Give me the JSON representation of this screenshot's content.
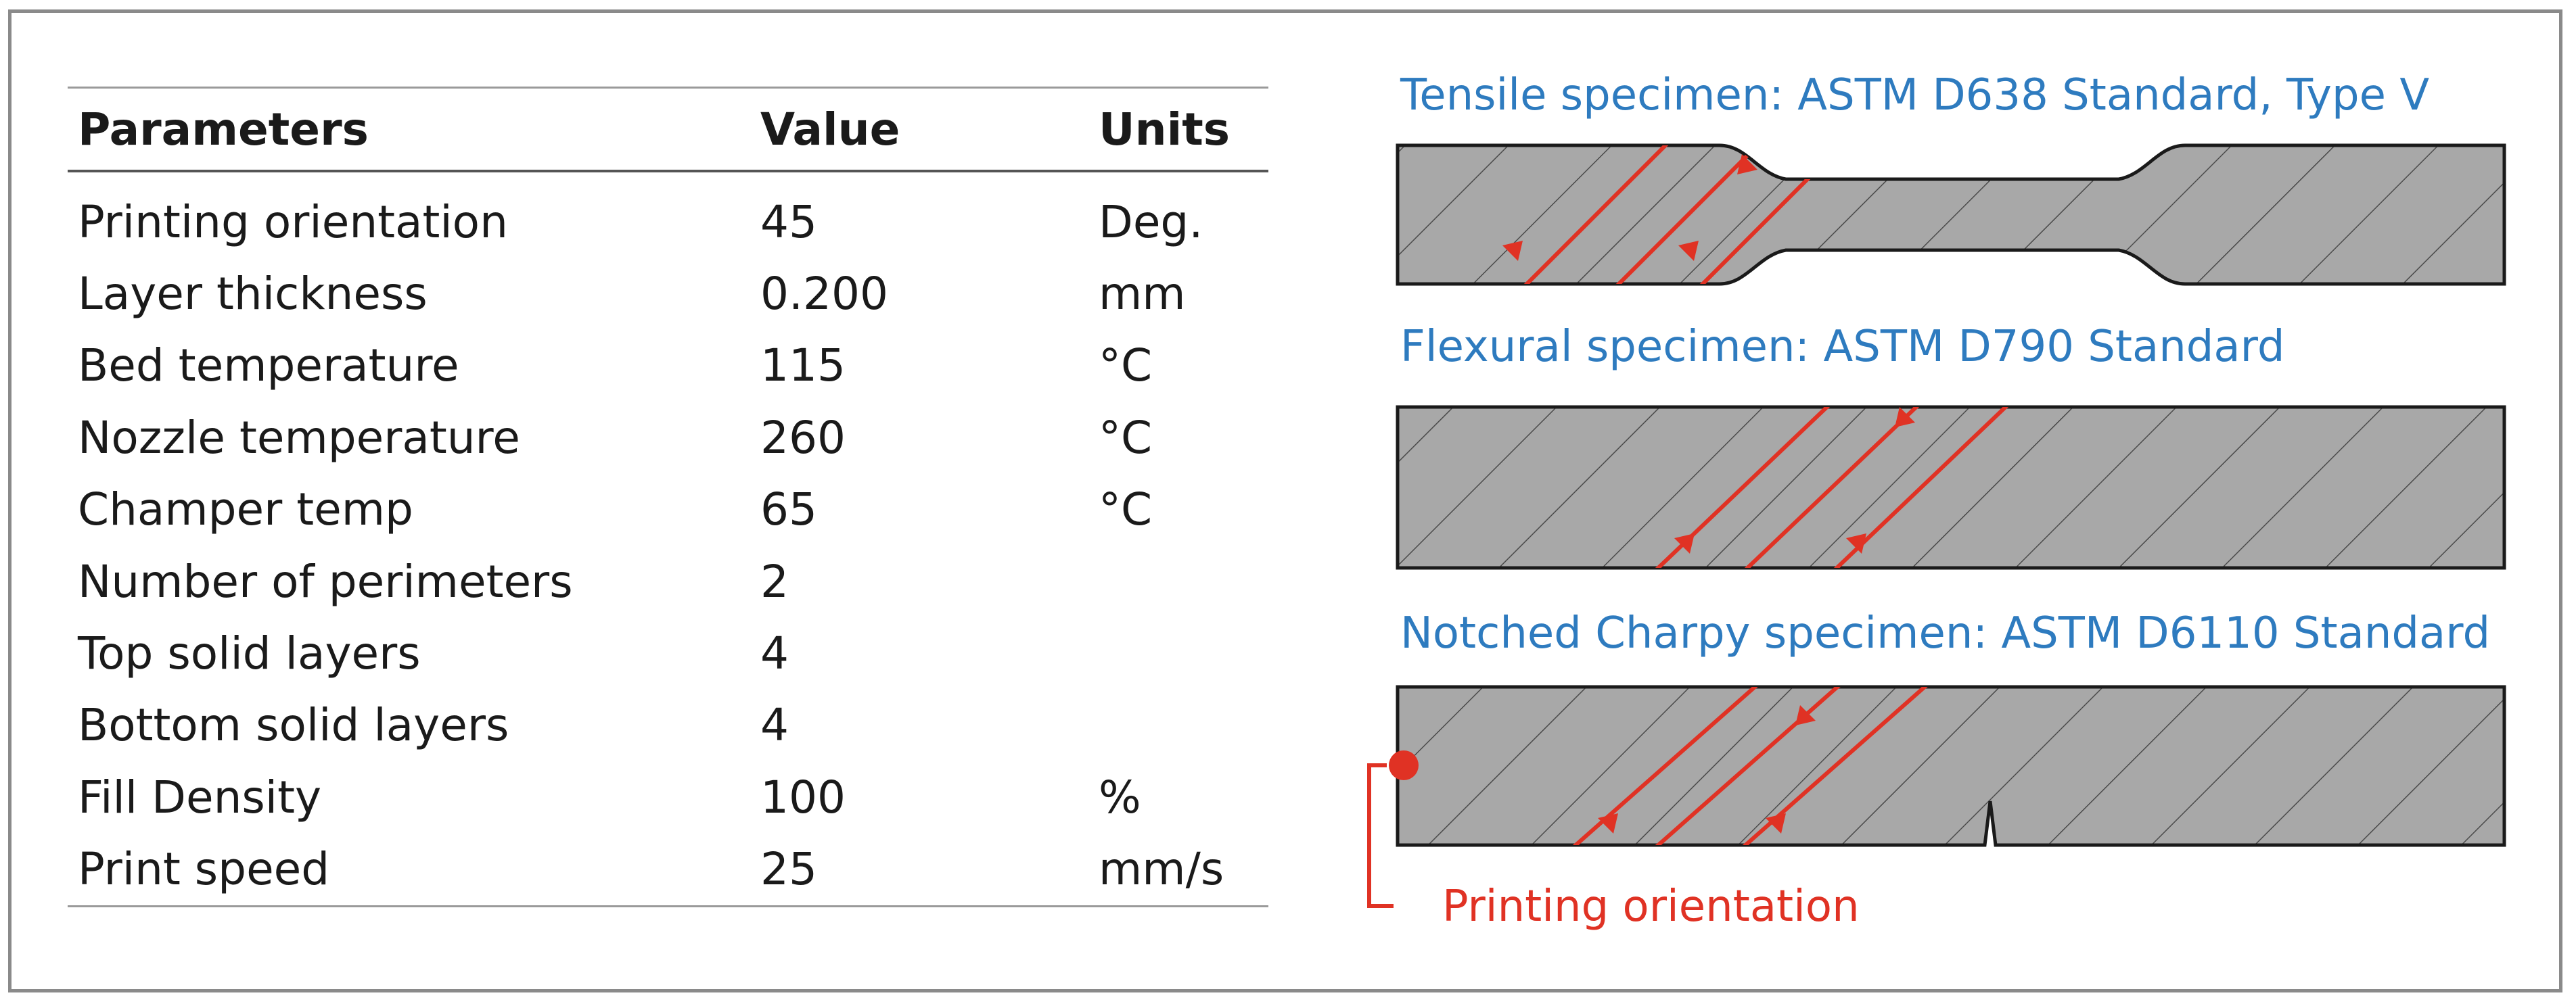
{
  "table": {
    "headers": {
      "parameter": "Parameters",
      "value": "Value",
      "units": "Units"
    },
    "rows": [
      {
        "parameter": "Printing orientation",
        "value": "45",
        "units": "Deg."
      },
      {
        "parameter": "Layer thickness",
        "value": "0.200",
        "units": "mm"
      },
      {
        "parameter": "Bed temperature",
        "value": "115",
        "units": "°C"
      },
      {
        "parameter": "Nozzle temperature",
        "value": "260",
        "units": "°C"
      },
      {
        "parameter": "Champer temp",
        "value": "65",
        "units": "°C"
      },
      {
        "parameter": "Number of perimeters",
        "value": "2",
        "units": ""
      },
      {
        "parameter": "Top solid layers",
        "value": "4",
        "units": ""
      },
      {
        "parameter": "Bottom solid layers",
        "value": "4",
        "units": ""
      },
      {
        "parameter": "Fill Density",
        "value": "100",
        "units": "%"
      },
      {
        "parameter": "Print speed",
        "value": "25",
        "units": "mm/s"
      }
    ]
  },
  "specimens": {
    "tensile_title": "Tensile specimen: ASTM D638 Standard, Type V",
    "flexural_title": "Flexural specimen: ASTM D790 Standard",
    "charpy_title": "Notched Charpy specimen: ASTM D6110 Standard"
  },
  "legend": {
    "label": "Printing orientation"
  },
  "colors": {
    "title_blue": "#2e7bbf",
    "orientation_red": "#e03224",
    "specimen_fill": "#a8a8a8",
    "hatch": "#4a4a4a"
  }
}
